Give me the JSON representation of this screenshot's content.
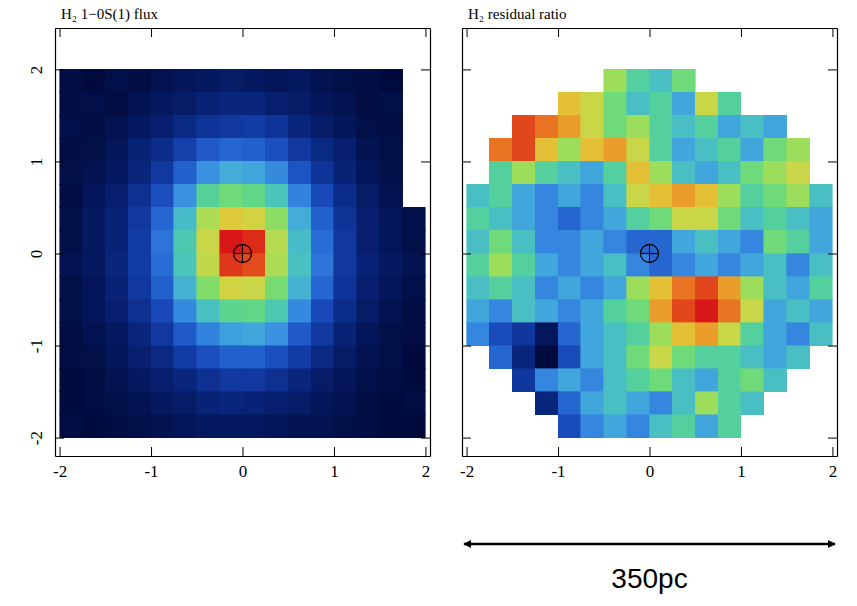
{
  "chart_data": [
    {
      "type": "heatmap",
      "title": "H₂ 1−0S(1) flux",
      "x": [
        -1.875,
        -1.625,
        -1.375,
        -1.125,
        -0.875,
        -0.625,
        -0.375,
        -0.125,
        0.125,
        0.375,
        0.625,
        0.875,
        1.125,
        1.375,
        1.625,
        1.875
      ],
      "y": [
        1.875,
        1.625,
        1.375,
        1.125,
        0.875,
        0.625,
        0.375,
        0.125,
        -0.125,
        -0.375,
        -0.625,
        -0.875,
        -1.125,
        -1.375,
        -1.625,
        -1.875
      ],
      "values": [
        [
          1.1,
          1.0,
          1.2,
          1.1,
          1.3,
          1.4,
          1.5,
          1.6,
          1.5,
          1.4,
          1.5,
          1.3,
          1.2,
          1.1,
          1.0,
          null
        ],
        [
          1.1,
          1.2,
          1.1,
          1.3,
          1.5,
          1.6,
          1.8,
          1.9,
          1.9,
          1.7,
          1.6,
          1.4,
          1.3,
          1.1,
          1.2,
          null
        ],
        [
          1.2,
          1.1,
          1.3,
          1.5,
          1.7,
          2.0,
          2.3,
          2.4,
          2.5,
          2.3,
          1.9,
          1.6,
          1.4,
          1.2,
          1.1,
          null
        ],
        [
          1.1,
          1.2,
          1.4,
          1.8,
          2.1,
          2.6,
          3.1,
          3.3,
          3.2,
          2.9,
          2.4,
          2.0,
          1.7,
          1.3,
          1.2,
          null
        ],
        [
          1.2,
          1.3,
          1.5,
          1.9,
          2.4,
          3.2,
          3.9,
          4.3,
          4.2,
          3.8,
          3.0,
          2.3,
          1.8,
          1.4,
          1.2,
          null
        ],
        [
          1.1,
          1.4,
          1.7,
          2.2,
          2.9,
          3.9,
          5.2,
          5.6,
          5.4,
          4.8,
          3.7,
          2.8,
          2.1,
          1.6,
          1.3,
          null
        ],
        [
          1.2,
          1.5,
          1.8,
          2.4,
          3.3,
          4.6,
          6.2,
          6.8,
          6.6,
          5.9,
          4.3,
          3.2,
          2.3,
          1.7,
          1.4,
          1.2
        ],
        [
          1.2,
          1.5,
          1.8,
          2.5,
          3.5,
          4.9,
          6.5,
          8.8,
          8.6,
          6.3,
          4.6,
          3.4,
          2.4,
          1.7,
          1.4,
          1.2
        ],
        [
          1.3,
          1.5,
          1.9,
          2.5,
          3.4,
          4.8,
          6.4,
          8.5,
          8.3,
          6.2,
          4.7,
          3.5,
          2.4,
          1.8,
          1.5,
          1.3
        ],
        [
          1.2,
          1.4,
          1.8,
          2.4,
          3.2,
          4.4,
          5.8,
          6.6,
          6.5,
          5.7,
          4.4,
          3.3,
          2.3,
          1.7,
          1.4,
          1.2
        ],
        [
          1.2,
          1.4,
          1.7,
          2.2,
          2.8,
          3.8,
          4.7,
          5.3,
          5.4,
          4.9,
          3.8,
          2.8,
          2.1,
          1.6,
          1.3,
          1.1
        ],
        [
          1.1,
          1.3,
          1.5,
          1.9,
          2.4,
          3.1,
          3.7,
          4.1,
          4.2,
          3.9,
          3.1,
          2.4,
          1.8,
          1.4,
          1.2,
          1.1
        ],
        [
          1.1,
          1.2,
          1.4,
          1.7,
          2.0,
          2.5,
          2.9,
          3.2,
          3.2,
          2.9,
          2.5,
          2.0,
          1.6,
          1.3,
          1.2,
          1.0
        ],
        [
          1.0,
          1.1,
          1.3,
          1.5,
          1.7,
          1.9,
          2.2,
          2.4,
          2.4,
          2.2,
          1.9,
          1.6,
          1.4,
          1.2,
          1.1,
          1.0
        ],
        [
          1.0,
          1.1,
          1.2,
          1.3,
          1.5,
          1.6,
          1.8,
          1.9,
          1.8,
          1.7,
          1.6,
          1.4,
          1.3,
          1.1,
          1.0,
          1.1
        ],
        [
          1.1,
          1.0,
          1.1,
          1.2,
          1.3,
          1.4,
          1.5,
          1.5,
          1.5,
          1.4,
          1.3,
          1.3,
          1.2,
          1.1,
          1.0,
          1.0
        ]
      ],
      "xlim": [
        -2.05,
        2.05
      ],
      "ylim": [
        -2.2,
        2.45
      ],
      "xticks": [
        -2,
        -1,
        0,
        1,
        2
      ],
      "yticks": [
        -2,
        -1,
        0,
        1,
        2
      ],
      "nucleus": [
        0,
        0
      ]
    },
    {
      "type": "heatmap",
      "title": "H₂ residual ratio",
      "x": [
        -1.875,
        -1.625,
        -1.375,
        -1.125,
        -0.875,
        -0.625,
        -0.375,
        -0.125,
        0.125,
        0.375,
        0.625,
        0.875,
        1.125,
        1.375,
        1.625,
        1.875
      ],
      "y": [
        1.875,
        1.625,
        1.375,
        1.125,
        0.875,
        0.625,
        0.375,
        0.125,
        -0.125,
        -0.375,
        -0.625,
        -0.875,
        -1.125,
        -1.375,
        -1.625,
        -1.875
      ],
      "values": [
        [
          null,
          null,
          null,
          null,
          null,
          null,
          7.0,
          6.0,
          5.5,
          6.5,
          null,
          null,
          null,
          null,
          null,
          null
        ],
        [
          null,
          null,
          null,
          null,
          8.0,
          7.5,
          6.5,
          5.5,
          6.0,
          5.0,
          7.5,
          6.0,
          null,
          null,
          null,
          null
        ],
        [
          null,
          null,
          9.5,
          9.0,
          8.5,
          7.5,
          6.5,
          7.0,
          6.0,
          5.5,
          6.0,
          5.0,
          5.5,
          5.0,
          null,
          null
        ],
        [
          null,
          9.0,
          9.5,
          8.0,
          7.0,
          8.0,
          8.5,
          7.5,
          6.0,
          5.0,
          5.5,
          6.0,
          5.0,
          6.5,
          7.0,
          null
        ],
        [
          null,
          6.0,
          7.0,
          6.0,
          5.5,
          5.0,
          6.0,
          8.0,
          7.0,
          5.5,
          5.0,
          5.5,
          6.5,
          7.0,
          7.5,
          null
        ],
        [
          5.5,
          6.0,
          5.0,
          4.5,
          5.0,
          4.5,
          5.5,
          7.5,
          8.0,
          8.5,
          8.0,
          7.0,
          6.0,
          6.5,
          7.0,
          5.5
        ],
        [
          6.0,
          5.5,
          5.0,
          4.5,
          4.0,
          4.5,
          5.0,
          6.0,
          6.5,
          7.5,
          7.5,
          6.5,
          5.5,
          6.0,
          5.5,
          5.0
        ],
        [
          5.5,
          6.5,
          5.5,
          4.5,
          4.5,
          5.0,
          4.5,
          4.0,
          4.0,
          5.0,
          5.5,
          5.0,
          4.5,
          6.5,
          6.0,
          5.0
        ],
        [
          6.0,
          7.0,
          6.0,
          5.0,
          4.5,
          5.0,
          5.5,
          4.5,
          4.0,
          4.5,
          5.0,
          4.5,
          5.0,
          5.5,
          4.5,
          5.5
        ],
        [
          5.5,
          6.0,
          5.5,
          4.5,
          5.0,
          4.5,
          5.0,
          7.0,
          8.0,
          9.0,
          9.5,
          8.5,
          7.0,
          5.5,
          5.0,
          6.0
        ],
        [
          5.0,
          4.5,
          5.5,
          5.0,
          4.5,
          5.0,
          6.0,
          6.5,
          8.5,
          9.5,
          10.0,
          9.0,
          7.5,
          5.0,
          5.5,
          5.0
        ],
        [
          4.5,
          3.5,
          3.0,
          2.0,
          4.0,
          5.0,
          5.5,
          6.0,
          7.0,
          8.0,
          8.5,
          7.5,
          6.0,
          5.0,
          4.5,
          5.5
        ],
        [
          null,
          4.0,
          2.5,
          1.5,
          3.5,
          5.0,
          5.5,
          6.5,
          7.5,
          6.5,
          6.0,
          6.0,
          5.5,
          5.0,
          5.5,
          null
        ],
        [
          null,
          null,
          3.0,
          4.5,
          5.0,
          4.5,
          5.5,
          6.0,
          6.5,
          5.5,
          5.0,
          6.0,
          6.5,
          5.5,
          null,
          null
        ],
        [
          null,
          null,
          null,
          2.5,
          4.0,
          5.0,
          5.5,
          5.0,
          4.5,
          5.5,
          7.0,
          6.0,
          5.5,
          null,
          null,
          null
        ],
        [
          null,
          null,
          null,
          null,
          3.5,
          4.5,
          5.0,
          4.5,
          5.5,
          6.0,
          5.0,
          6.0,
          null,
          null,
          null,
          null
        ]
      ],
      "xlim": [
        -2.05,
        2.05
      ],
      "ylim": [
        -2.2,
        2.45
      ],
      "xticks": [
        -2,
        -1,
        0,
        1,
        2
      ],
      "yticks": [
        -2,
        -1,
        0,
        1,
        2
      ],
      "tick_labels": "x",
      "nucleus": [
        0,
        0
      ],
      "annotation": "350pc"
    }
  ]
}
